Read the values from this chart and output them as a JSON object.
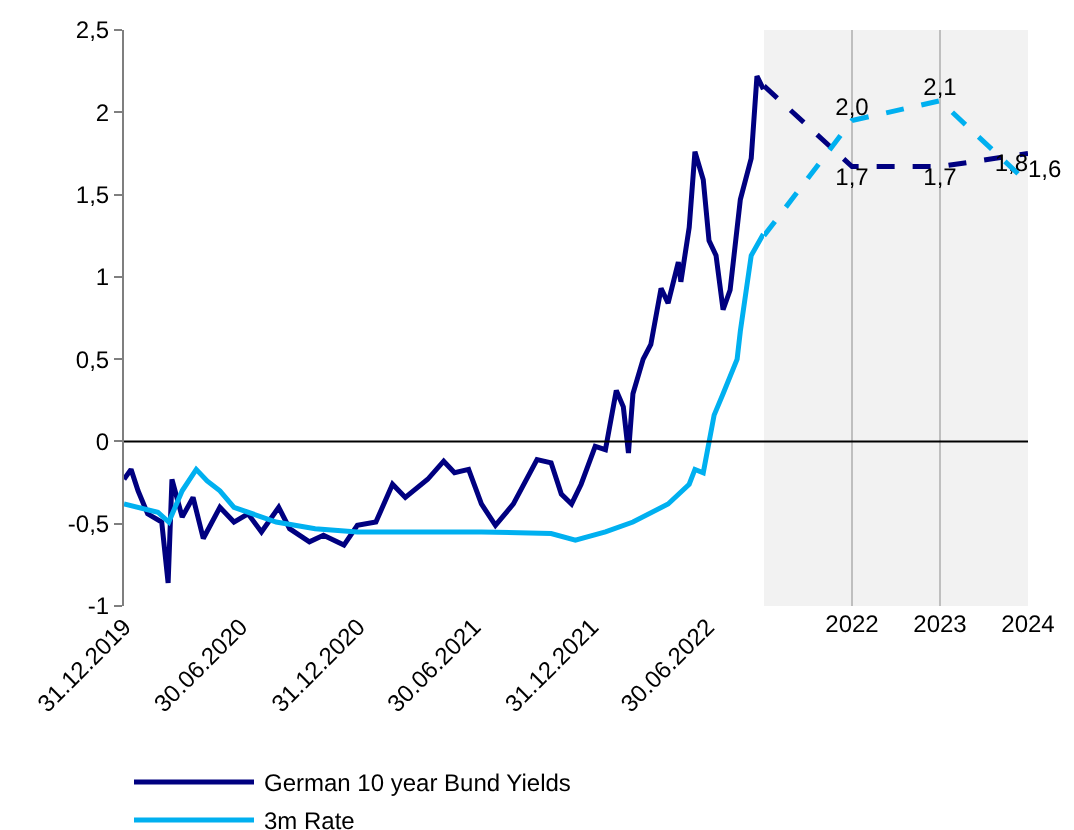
{
  "chart_data": [
    {
      "type": "line",
      "legend": "bottom",
      "line_style": "solid",
      "grid": false,
      "ref_lines": [
        {
          "axis": "y",
          "value": 0,
          "color": "#000000"
        }
      ],
      "ylim": [
        -1,
        2.5
      ],
      "yticks": [
        {
          "value": 2.5,
          "label": "2,5"
        },
        2,
        {
          "value": 1.5,
          "label": "1,5"
        },
        1,
        {
          "value": 0.5,
          "label": "0,5"
        },
        0,
        {
          "value": -0.5,
          "label": "-0,5"
        },
        -1
      ],
      "xlim": [
        "2019-12-31",
        "2022-09-27"
      ],
      "xticks": [
        {
          "value": "2019-12-31",
          "label": "31.12.2019"
        },
        {
          "value": "2020-06-30",
          "label": "30.06.2020"
        },
        {
          "value": "2020-12-31",
          "label": "31.12.2020"
        },
        {
          "value": "2021-06-30",
          "label": "30.06.2021"
        },
        {
          "value": "2021-12-31",
          "label": "31.12.2021"
        },
        {
          "value": "2022-06-30",
          "label": "30.06.2022"
        }
      ],
      "series": [
        {
          "name": "German 10 year Bund Yields",
          "color": "#000080",
          "x": [
            "2019-12-31",
            "2020-01-11",
            "2020-01-22",
            "2020-02-06",
            "2020-02-28",
            "2020-03-09",
            "2020-03-15",
            "2020-03-31",
            "2020-04-17",
            "2020-05-03",
            "2020-05-29",
            "2020-06-20",
            "2020-07-12",
            "2020-08-02",
            "2020-08-29",
            "2020-09-15",
            "2020-10-16",
            "2020-11-07",
            "2020-12-09",
            "2020-12-30",
            "2021-01-28",
            "2021-02-23",
            "2021-03-15",
            "2021-04-19",
            "2021-05-14",
            "2021-05-31",
            "2021-06-22",
            "2021-07-12",
            "2021-08-03",
            "2021-08-31",
            "2021-10-07",
            "2021-10-29",
            "2021-11-14",
            "2021-11-30",
            "2021-12-15",
            "2022-01-06",
            "2022-01-22",
            "2022-02-08",
            "2022-02-19",
            "2022-02-27",
            "2022-03-06",
            "2022-03-22",
            "2022-04-03",
            "2022-04-19",
            "2022-04-30",
            "2022-05-16",
            "2022-05-20",
            "2022-06-02",
            "2022-06-11",
            "2022-06-24",
            "2022-07-03",
            "2022-07-14",
            "2022-07-25",
            "2022-08-05",
            "2022-08-21",
            "2022-09-07",
            "2022-09-16",
            "2022-09-26"
          ],
          "values": [
            -0.23,
            -0.17,
            -0.3,
            -0.44,
            -0.49,
            -0.86,
            -0.23,
            -0.46,
            -0.34,
            -0.59,
            -0.4,
            -0.49,
            -0.44,
            -0.55,
            -0.4,
            -0.53,
            -0.61,
            -0.57,
            -0.63,
            -0.51,
            -0.49,
            -0.26,
            -0.34,
            -0.23,
            -0.12,
            -0.19,
            -0.17,
            -0.38,
            -0.51,
            -0.38,
            -0.11,
            -0.13,
            -0.32,
            -0.38,
            -0.26,
            -0.03,
            -0.05,
            0.31,
            0.21,
            -0.07,
            0.29,
            0.5,
            0.59,
            0.93,
            0.84,
            1.09,
            0.97,
            1.3,
            1.76,
            1.59,
            1.22,
            1.13,
            0.8,
            0.92,
            1.47,
            1.72,
            2.22,
            2.14
          ]
        },
        {
          "name": "3m Rate",
          "color": "#00b0f0",
          "x": [
            "2019-12-31",
            "2020-02-22",
            "2020-03-10",
            "2020-03-31",
            "2020-04-22",
            "2020-05-09",
            "2020-05-29",
            "2020-06-20",
            "2020-08-25",
            "2020-10-25",
            "2020-12-30",
            "2021-07-12",
            "2021-10-29",
            "2021-12-06",
            "2022-01-22",
            "2022-03-06",
            "2022-04-30",
            "2022-06-02",
            "2022-06-11",
            "2022-06-24",
            "2022-07-11",
            "2022-07-25",
            "2022-08-16",
            "2022-08-21",
            "2022-09-07",
            "2022-09-26"
          ],
          "values": [
            -0.38,
            -0.43,
            -0.49,
            -0.3,
            -0.17,
            -0.24,
            -0.3,
            -0.4,
            -0.49,
            -0.53,
            -0.55,
            -0.55,
            -0.56,
            -0.6,
            -0.55,
            -0.49,
            -0.38,
            -0.26,
            -0.17,
            -0.19,
            0.16,
            0.29,
            0.5,
            0.67,
            1.13,
            1.26
          ]
        }
      ]
    },
    {
      "type": "line",
      "line_style": "dashed",
      "grid": "x",
      "tick_labels": "x",
      "ref_lines": [
        {
          "axis": "y",
          "value": 0,
          "color": "#000000"
        }
      ],
      "ylim": [
        -1,
        2.5
      ],
      "categories": [
        null,
        "2022",
        "2023",
        "2024"
      ],
      "series": [
        {
          "color": "#000080",
          "values": [
            2.16,
            1.67,
            1.67,
            1.75
          ],
          "value_labels": [
            null,
            "1,7",
            "1,7",
            "1,8"
          ]
        },
        {
          "color": "#00b0f0",
          "values": [
            1.25,
            1.95,
            2.07,
            1.57
          ],
          "value_labels": [
            null,
            "2,0",
            "2,1",
            "1,6"
          ]
        }
      ]
    }
  ]
}
